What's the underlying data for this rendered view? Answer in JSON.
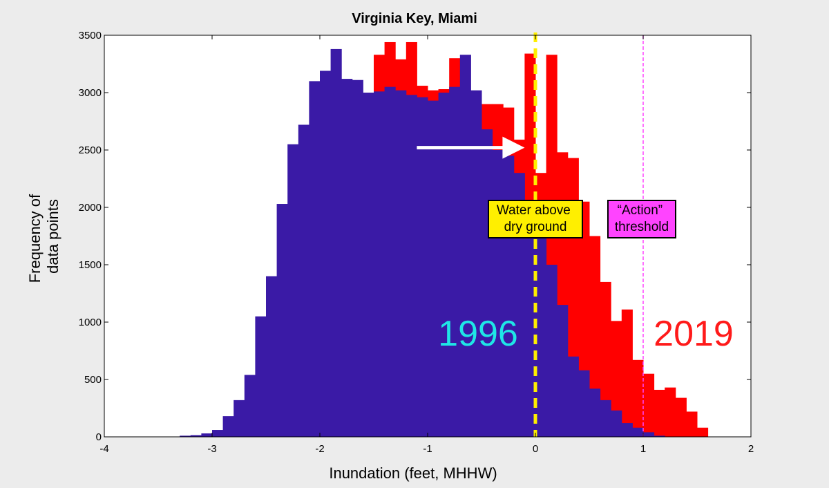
{
  "chart_data": {
    "type": "histogram",
    "title": "Virginia Key, Miami",
    "xlabel": "Inundation (feet, MHHW)",
    "ylabel_lines": [
      "Frequency of",
      "data points"
    ],
    "xlim": [
      -4,
      2
    ],
    "ylim": [
      0,
      3500
    ],
    "xticks": [
      -4,
      -3,
      -2,
      -1,
      0,
      1,
      2
    ],
    "yticks": [
      0,
      500,
      1000,
      1500,
      2000,
      2500,
      3000,
      3500
    ],
    "bin_width": 0.1,
    "colors": {
      "series_1996": "#3a1aa6",
      "series_2019": "#ff0000",
      "label_1996": "#1fe6e6",
      "label_2019": "#ff1a1a",
      "threshold_line": "#ff44ff",
      "dry_line": "#ffef00",
      "arrow": "#ffffff",
      "background": "#ececec",
      "plot_background": "#ffffff"
    },
    "series": [
      {
        "name": "1996",
        "bin_starts": [
          -3.3,
          -3.2,
          -3.1,
          -3.0,
          -2.9,
          -2.8,
          -2.7,
          -2.6,
          -2.5,
          -2.4,
          -2.3,
          -2.2,
          -2.1,
          -2.0,
          -1.9,
          -1.8,
          -1.7,
          -1.6,
          -1.5,
          -1.4,
          -1.3,
          -1.2,
          -1.1,
          -1.0,
          -0.9,
          -0.8,
          -0.7,
          -0.6,
          -0.5,
          -0.4,
          -0.3,
          -0.2,
          -0.1,
          0.0,
          0.1,
          0.2,
          0.3,
          0.4,
          0.5,
          0.6,
          0.7,
          0.8,
          0.9,
          1.0,
          1.1
        ],
        "values": [
          10,
          15,
          30,
          60,
          180,
          320,
          540,
          1050,
          1400,
          2030,
          2550,
          2720,
          3100,
          3190,
          3380,
          3120,
          3110,
          3000,
          3010,
          3050,
          3020,
          2980,
          2960,
          2930,
          3000,
          3050,
          3330,
          3020,
          2680,
          2500,
          2450,
          2300,
          2000,
          1930,
          1500,
          1150,
          700,
          580,
          420,
          320,
          230,
          120,
          80,
          40,
          10
        ]
      },
      {
        "name": "2019",
        "bin_starts": [
          -1.5,
          -1.4,
          -1.3,
          -1.2,
          -1.1,
          -1.0,
          -0.9,
          -0.8,
          -0.7,
          -0.6,
          -0.5,
          -0.4,
          -0.3,
          -0.2,
          -0.1,
          0.0,
          0.1,
          0.2,
          0.3,
          0.4,
          0.5,
          0.6,
          0.7,
          0.8,
          0.9,
          1.0,
          1.1,
          1.2,
          1.3,
          1.4,
          1.5
        ],
        "values": [
          3330,
          3440,
          3290,
          3440,
          3060,
          3020,
          3030,
          3300,
          3020,
          2500,
          2900,
          2900,
          2870,
          2590,
          3340,
          2300,
          3330,
          2480,
          2430,
          2050,
          1750,
          1350,
          1010,
          1110,
          670,
          550,
          410,
          430,
          340,
          220,
          80
        ]
      }
    ],
    "annotations": {
      "label_1996": "1996",
      "label_2019": "2019",
      "dry_ground": {
        "lines": [
          "Water above",
          "dry ground"
        ],
        "x": 0
      },
      "action_threshold": {
        "lines": [
          "“Action”",
          "threshold"
        ],
        "x": 1
      },
      "arrow": {
        "x_start": -1.1,
        "x_end": -0.1,
        "y": 2520
      }
    }
  }
}
